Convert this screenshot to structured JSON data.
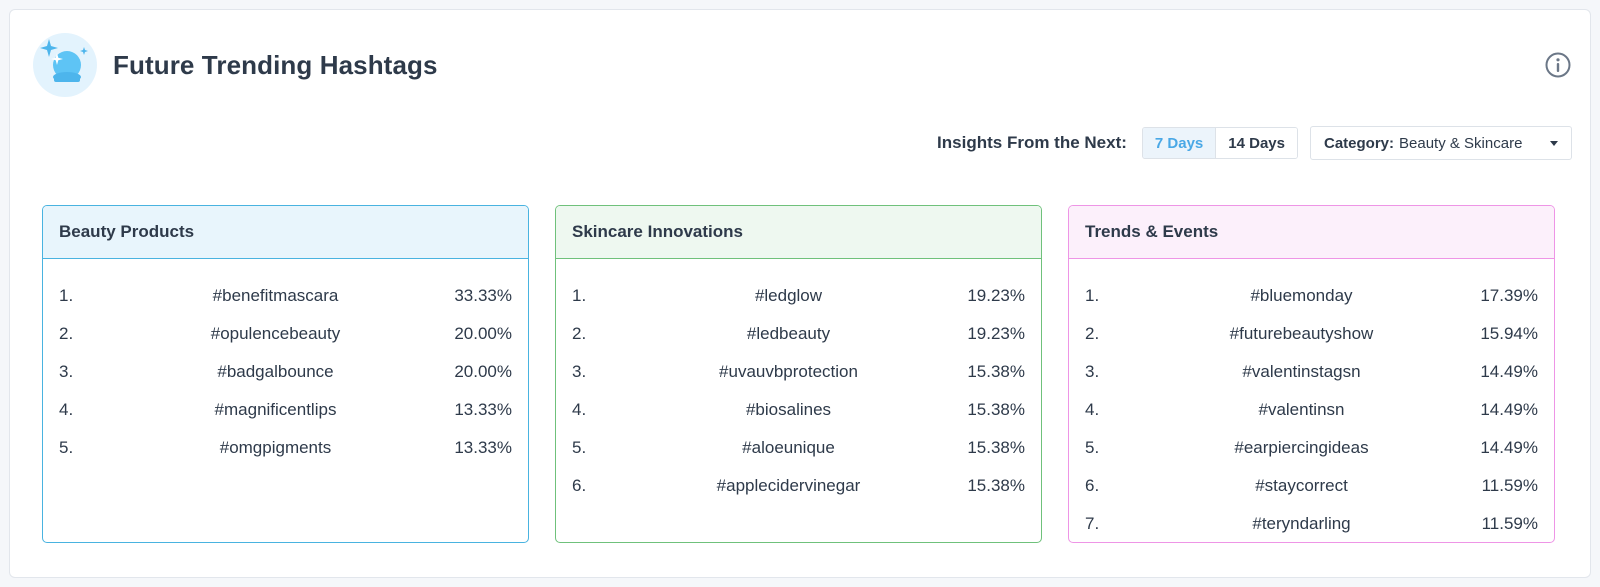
{
  "title": "Future Trending Hashtags",
  "icon": "crystal-ball-icon",
  "controls": {
    "label": "Insights From the Next:",
    "options": [
      "7 Days",
      "14 Days"
    ],
    "selected": "7 Days",
    "category_label": "Category:",
    "category_value": "Beauty & Skincare"
  },
  "colors": {
    "accent": "#4aa8e6",
    "beauty_border": "#49b3e0",
    "beauty_bg": "#e8f5fc",
    "skincare_border": "#6fc17b",
    "skincare_bg": "#eef8f0",
    "trends_border": "#ee95e6",
    "trends_bg": "#fcf0fb"
  },
  "panels": [
    {
      "title": "Beauty Products",
      "items": [
        {
          "rank": "1.",
          "tag": "#benefitmascara",
          "pct": "33.33%"
        },
        {
          "rank": "2.",
          "tag": "#opulencebeauty",
          "pct": "20.00%"
        },
        {
          "rank": "3.",
          "tag": "#badgalbounce",
          "pct": "20.00%"
        },
        {
          "rank": "4.",
          "tag": "#magnificentlips",
          "pct": "13.33%"
        },
        {
          "rank": "5.",
          "tag": "#omgpigments",
          "pct": "13.33%"
        }
      ]
    },
    {
      "title": "Skincare Innovations",
      "items": [
        {
          "rank": "1.",
          "tag": "#ledglow",
          "pct": "19.23%"
        },
        {
          "rank": "2.",
          "tag": "#ledbeauty",
          "pct": "19.23%"
        },
        {
          "rank": "3.",
          "tag": "#uvauvbprotection",
          "pct": "15.38%"
        },
        {
          "rank": "4.",
          "tag": "#biosalines",
          "pct": "15.38%"
        },
        {
          "rank": "5.",
          "tag": "#aloeunique",
          "pct": "15.38%"
        },
        {
          "rank": "6.",
          "tag": "#applecidervinegar",
          "pct": "15.38%"
        }
      ]
    },
    {
      "title": "Trends & Events",
      "items": [
        {
          "rank": "1.",
          "tag": "#bluemonday",
          "pct": "17.39%"
        },
        {
          "rank": "2.",
          "tag": "#futurebeautyshow",
          "pct": "15.94%"
        },
        {
          "rank": "3.",
          "tag": "#valentinstagsn",
          "pct": "14.49%"
        },
        {
          "rank": "4.",
          "tag": "#valentinsn",
          "pct": "14.49%"
        },
        {
          "rank": "5.",
          "tag": "#earpiercingideas",
          "pct": "14.49%"
        },
        {
          "rank": "6.",
          "tag": "#staycorrect",
          "pct": "11.59%"
        },
        {
          "rank": "7.",
          "tag": "#teryndarling",
          "pct": "11.59%"
        }
      ]
    }
  ]
}
